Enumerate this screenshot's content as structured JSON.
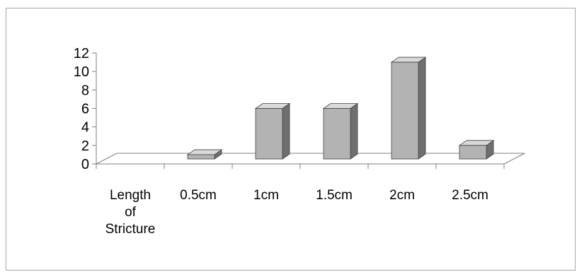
{
  "chart_data": {
    "type": "bar",
    "style": "3d-column",
    "categories": [
      "Length of Stricture",
      "0.5cm",
      "1cm",
      "1.5cm",
      "2cm",
      "2.5cm"
    ],
    "values": [
      0,
      1,
      6,
      6,
      11,
      2
    ],
    "title": "",
    "xlabel": "",
    "ylabel": "",
    "ylim": [
      0,
      12
    ],
    "yticks": [
      0,
      2,
      4,
      6,
      8,
      10,
      12
    ],
    "grid": false,
    "legend": "none",
    "colors": {
      "bar_front": "#b3b3b3",
      "bar_side": "#6f6f6f",
      "bar_top": "#d9d9d9",
      "floor": "#ffffff",
      "axis": "#7f7f7f"
    }
  }
}
